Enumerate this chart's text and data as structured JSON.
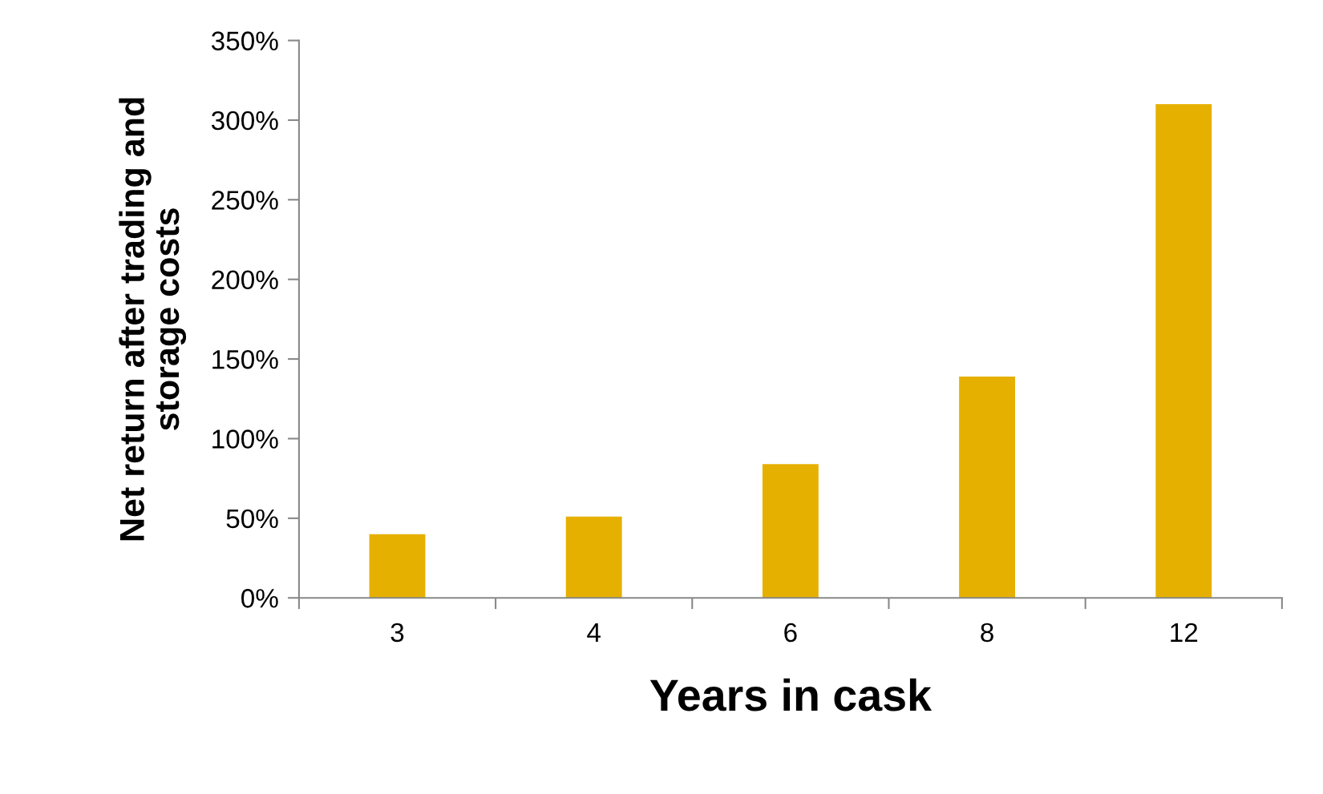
{
  "chart_data": {
    "type": "bar",
    "xlabel": "Years in cask",
    "ylabel": "Net return after trading and\nstorage costs",
    "categories": [
      "3",
      "4",
      "6",
      "8",
      "12"
    ],
    "values": [
      40,
      51,
      84,
      139,
      310
    ],
    "color": "#e6b000",
    "ylim": [
      0,
      350
    ],
    "yticks": [
      {
        "value": 0,
        "label": "0%"
      },
      {
        "value": 50,
        "label": "50%"
      },
      {
        "value": 100,
        "label": "100%"
      },
      {
        "value": 150,
        "label": "150%"
      },
      {
        "value": 200,
        "label": "200%"
      },
      {
        "value": 250,
        "label": "250%"
      },
      {
        "value": 300,
        "label": "300%"
      },
      {
        "value": 350,
        "label": "350%"
      }
    ],
    "grid": false,
    "legend": false
  }
}
